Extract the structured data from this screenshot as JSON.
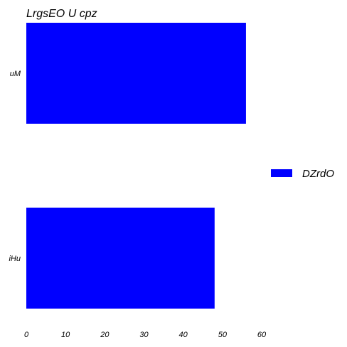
{
  "chart_data": {
    "type": "bar",
    "orientation": "horizontal",
    "title": "LrgsEO U cpz",
    "xlabel": "",
    "ylabel": "",
    "categories": [
      "uM",
      "iHu"
    ],
    "series": [
      {
        "name": "DZrdO",
        "values": [
          56,
          48
        ],
        "color": "#0000ff"
      }
    ],
    "xlim": [
      0,
      60
    ],
    "xticks": [
      0,
      10,
      20,
      30,
      40,
      50,
      60
    ],
    "grid": false,
    "legend": "right"
  }
}
